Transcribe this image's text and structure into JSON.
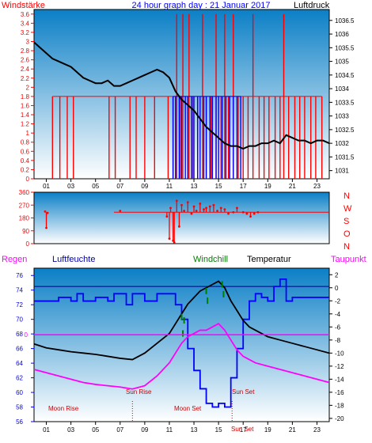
{
  "chart_data": [
    {
      "type": "line",
      "title": "24 hour graph day : 21 Januar 2017",
      "left_label": "Windstärke",
      "right_label": "Luftdruck",
      "x_ticks": [
        "01",
        "03",
        "05",
        "07",
        "09",
        "11",
        "13",
        "15",
        "17",
        "19",
        "21",
        "23"
      ],
      "y_left_ticks": [
        "0",
        "0.2",
        "0.4",
        "0.6",
        "0.8",
        "1",
        "1.2",
        "1.4",
        "1.6",
        "1.8",
        "2",
        "2.2",
        "2.4",
        "2.6",
        "2.8",
        "3",
        "3.2",
        "3.4",
        "3.6"
      ],
      "y_right_ticks": [
        "1031",
        "1031.5",
        "1032",
        "1032.5",
        "1033",
        "1033.5",
        "1034",
        "1034.5",
        "1035",
        "1035.5",
        "1036",
        "1036.5"
      ],
      "ylim_left": [
        0,
        3.7
      ],
      "ylim_right": [
        1030.7,
        1036.9
      ],
      "xlim": [
        0,
        24
      ],
      "series": [
        {
          "role": "pressure",
          "color": "#000000",
          "x": [
            0,
            0.5,
            1,
            1.5,
            2,
            2.5,
            3,
            3.5,
            4,
            4.5,
            5,
            5.5,
            6,
            6.5,
            7,
            7.5,
            8,
            8.5,
            9,
            9.5,
            10,
            10.5,
            11,
            11.5,
            12,
            12.5,
            13,
            13.5,
            14,
            14.5,
            15,
            15.5,
            16,
            16.5,
            17,
            17.5,
            18,
            18.5,
            19,
            19.5,
            20,
            20.5,
            21,
            21.5,
            22,
            22.5,
            23,
            23.5,
            24
          ],
          "y": [
            1035.7,
            1035.5,
            1035.3,
            1035.1,
            1035.0,
            1034.9,
            1034.8,
            1034.6,
            1034.4,
            1034.3,
            1034.2,
            1034.2,
            1034.3,
            1034.1,
            1034.1,
            1034.2,
            1034.3,
            1034.4,
            1034.5,
            1034.6,
            1034.7,
            1034.6,
            1034.4,
            1033.9,
            1033.6,
            1033.4,
            1033.2,
            1032.9,
            1032.6,
            1032.4,
            1032.2,
            1032.0,
            1031.9,
            1031.9,
            1031.8,
            1031.9,
            1031.9,
            1032.0,
            1032.0,
            1032.1,
            1032.0,
            1032.3,
            1032.2,
            1032.1,
            1032.1,
            1032.0,
            1032.1,
            1032.1,
            1032.0
          ]
        },
        {
          "role": "wind_gust",
          "color": "#ff0000",
          "spikes": [
            [
              1.5,
              1.8
            ],
            [
              2.1,
              1.8
            ],
            [
              2.7,
              1.8
            ],
            [
              3.2,
              1.8
            ],
            [
              6.1,
              1.8
            ],
            [
              6.6,
              1.8
            ],
            [
              7.8,
              1.8
            ],
            [
              8.3,
              1.8
            ],
            [
              9.0,
              1.8
            ],
            [
              9.8,
              1.8
            ],
            [
              10.9,
              1.8
            ],
            [
              11.3,
              1.8
            ],
            [
              11.6,
              3.6
            ],
            [
              11.9,
              1.8
            ],
            [
              12.1,
              3.6
            ],
            [
              12.6,
              3.6
            ],
            [
              12.9,
              1.8
            ],
            [
              13.3,
              1.8
            ],
            [
              13.7,
              3.6
            ],
            [
              14.0,
              1.8
            ],
            [
              14.4,
              1.8
            ],
            [
              14.8,
              3.6
            ],
            [
              15.2,
              1.8
            ],
            [
              15.5,
              3.6
            ],
            [
              15.8,
              1.8
            ],
            [
              16.2,
              3.6
            ],
            [
              16.6,
              1.8
            ],
            [
              17.0,
              1.8
            ],
            [
              17.4,
              1.8
            ],
            [
              17.8,
              3.6
            ],
            [
              18.3,
              1.8
            ],
            [
              18.7,
              1.8
            ],
            [
              19.1,
              1.8
            ],
            [
              19.6,
              1.8
            ],
            [
              20.0,
              1.8
            ],
            [
              20.3,
              3.6
            ],
            [
              20.7,
              1.8
            ],
            [
              21.2,
              1.8
            ],
            [
              21.6,
              1.8
            ],
            [
              22.0,
              1.8
            ],
            [
              22.5,
              1.8
            ],
            [
              22.9,
              1.8
            ],
            [
              23.4,
              1.8
            ]
          ]
        },
        {
          "role": "wind_avg",
          "color": "#0000ff",
          "spikes": [
            [
              11.3,
              1.8
            ],
            [
              11.5,
              1.8
            ],
            [
              11.8,
              1.8
            ],
            [
              12.0,
              1.8
            ],
            [
              12.3,
              1.8
            ],
            [
              12.5,
              1.8
            ],
            [
              12.8,
              1.8
            ],
            [
              13.0,
              1.8
            ],
            [
              13.3,
              1.8
            ],
            [
              13.5,
              1.8
            ],
            [
              13.8,
              1.8
            ],
            [
              14.0,
              1.8
            ],
            [
              14.3,
              1.8
            ],
            [
              14.5,
              1.8
            ],
            [
              14.8,
              1.8
            ],
            [
              15.0,
              1.8
            ],
            [
              15.3,
              1.8
            ],
            [
              15.6,
              1.8
            ],
            [
              15.9,
              1.8
            ],
            [
              16.2,
              1.8
            ],
            [
              16.5,
              1.8
            ],
            [
              16.8,
              1.8
            ]
          ]
        }
      ]
    },
    {
      "type": "scatter",
      "y_left_ticks": [
        "0",
        "90",
        "180",
        "270",
        "360"
      ],
      "direction_labels": [
        "N",
        "W",
        "S",
        "O",
        "N"
      ],
      "ylim": [
        0,
        360
      ],
      "xlim": [
        0,
        24
      ],
      "series": [
        {
          "role": "wind_direction",
          "color": "#ff0000",
          "x": [
            0.9,
            1.0,
            1.1,
            7.0,
            10.8,
            11.0,
            11.1,
            11.3,
            11.4,
            11.6,
            11.8,
            12.0,
            12.2,
            12.5,
            12.8,
            13.0,
            13.2,
            13.5,
            13.8,
            14.0,
            14.3,
            14.6,
            14.9,
            15.2,
            15.5,
            15.8,
            16.2,
            16.5,
            17.0,
            17.3,
            17.6,
            17.9,
            18.2
          ],
          "y": [
            225,
            110,
            215,
            230,
            190,
            35,
            250,
            20,
            8,
            300,
            120,
            270,
            230,
            290,
            210,
            260,
            230,
            280,
            240,
            250,
            260,
            270,
            230,
            250,
            240,
            210,
            220,
            250,
            220,
            210,
            190,
            210,
            220
          ]
        }
      ],
      "reference_level": 220
    },
    {
      "type": "line",
      "legend": [
        "Regen",
        "Luftfeuchte",
        "Windchill",
        "Temperatur",
        "Taupunkt"
      ],
      "y_left_ticks": [
        "56",
        "58",
        "60",
        "62",
        "64",
        "66",
        "68",
        "70",
        "72",
        "74",
        "76"
      ],
      "y_right_ticks": [
        "2",
        "0",
        "-2",
        "-4",
        "-6",
        "-8",
        "-10",
        "-12",
        "-14",
        "-16",
        "-18",
        "-20"
      ],
      "rain_axis_label": "0",
      "ylim_left": [
        56,
        77
      ],
      "ylim_right": [
        -20.5,
        3
      ],
      "xlim": [
        0,
        24
      ],
      "annotations": [
        "Moon Rise",
        "Sun Rise",
        "Moon Set",
        "Sun Set",
        "Sun Set"
      ],
      "series": [
        {
          "name": "Luftfeuchte",
          "color": "#0000ff",
          "axis": "left",
          "x": [
            0,
            1,
            2,
            3,
            3.5,
            4,
            5,
            6,
            6.5,
            7,
            7.5,
            8,
            9,
            10,
            11,
            11.5,
            12,
            12.5,
            13,
            13.5,
            14,
            14.5,
            15,
            15.5,
            16,
            16.5,
            17,
            17.5,
            18,
            18.5,
            19,
            19.5,
            20,
            20.5,
            21,
            22,
            23,
            24
          ],
          "y": [
            72.5,
            72.5,
            73.0,
            72.5,
            73.5,
            72.5,
            73.0,
            72.5,
            73.5,
            73.5,
            72.0,
            73.5,
            72.5,
            73.5,
            73.5,
            72.0,
            70.0,
            66.0,
            63.0,
            60.5,
            58.5,
            58.0,
            58.5,
            58.0,
            62.0,
            66.0,
            70.0,
            72.5,
            73.5,
            73.0,
            72.5,
            74.5,
            75.5,
            72.5,
            73.0,
            73.0,
            73.0,
            73.0
          ]
        },
        {
          "name": "Temperatur",
          "color": "#000000",
          "axis": "right",
          "x": [
            0,
            1,
            2,
            3,
            4,
            5,
            6,
            7,
            8,
            9,
            10,
            11,
            11.5,
            12,
            12.5,
            13,
            13.5,
            14,
            14.5,
            15,
            15.5,
            16,
            16.5,
            17,
            17.5,
            18,
            19,
            20,
            21,
            22,
            23,
            24
          ],
          "y": [
            -8.6,
            -9.2,
            -9.5,
            -9.8,
            -10.0,
            -10.2,
            -10.5,
            -10.8,
            -11.0,
            -10.0,
            -8.5,
            -7.0,
            -5.5,
            -4.0,
            -2.5,
            -1.5,
            -0.5,
            0.0,
            0.5,
            1.0,
            0.0,
            -2.0,
            -3.5,
            -5.0,
            -6.0,
            -6.5,
            -7.5,
            -8.0,
            -8.5,
            -9.0,
            -9.5,
            -10.0
          ]
        },
        {
          "name": "Taupunkt",
          "color": "#ff00ff",
          "axis": "right",
          "x": [
            0,
            1,
            2,
            3,
            4,
            5,
            6,
            7,
            8,
            9,
            10,
            11,
            11.5,
            12,
            12.5,
            13,
            13.5,
            14,
            14.5,
            15,
            15.5,
            16,
            16.5,
            17,
            17.5,
            18,
            19,
            20,
            21,
            22,
            23,
            24
          ],
          "y": [
            -12.5,
            -13.0,
            -13.5,
            -14.0,
            -14.5,
            -14.8,
            -15.0,
            -15.2,
            -15.5,
            -15.0,
            -13.5,
            -11.5,
            -10.0,
            -8.5,
            -7.5,
            -7.0,
            -6.5,
            -6.5,
            -6.0,
            -5.5,
            -6.5,
            -8.0,
            -9.5,
            -10.5,
            -11.0,
            -11.5,
            -12.0,
            -12.5,
            -13.0,
            -13.5,
            -14.0,
            -14.5
          ]
        },
        {
          "name": "Windchill",
          "color": "#008000",
          "axis": "right",
          "x": [
            12.0,
            12.1,
            12.2,
            14.0,
            14.1,
            15.3,
            15.4
          ],
          "y": [
            -4.0,
            -6.5,
            -4.5,
            0.0,
            -1.5,
            1.0,
            -0.5
          ]
        },
        {
          "name": "Regen",
          "color": "#ff00ff",
          "axis": "rain",
          "x": [
            0,
            24
          ],
          "y": [
            0,
            0
          ]
        }
      ],
      "reference_lines": {
        "humidity_level": 74.5,
        "rain_zero_level": 67.9
      }
    }
  ],
  "colors": {
    "panel_top": "#0b7fc6",
    "panel_bottom": "#ffffff",
    "frame": "#000000",
    "left_axis_red": "#ff0000",
    "left_axis_blue": "#0000ff",
    "title": "#0000ff",
    "moon_label": "#cc0000"
  }
}
